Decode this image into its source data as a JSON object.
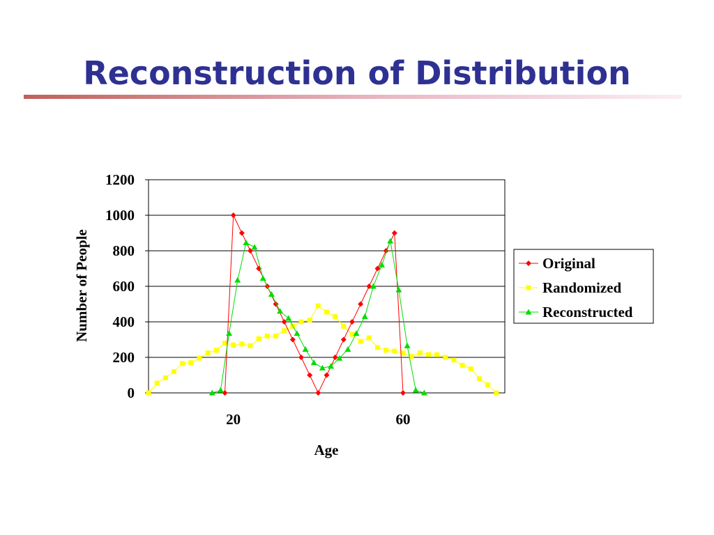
{
  "slide": {
    "title": "Reconstruction of Distribution"
  },
  "colors": {
    "title": "#2e3192",
    "rule": "#c0605a",
    "original": "#ff0000",
    "randomized": "#ffff00",
    "reconstructed": "#00dd00",
    "grid": "#000000"
  },
  "chart_data": {
    "type": "line",
    "xlabel": "Age",
    "ylabel": "Number of People",
    "xlim": [
      0,
      84
    ],
    "ylim": [
      0,
      1200
    ],
    "yticks": [
      0,
      200,
      400,
      600,
      800,
      1000,
      1200
    ],
    "xticks": [
      20,
      60
    ],
    "grid": true,
    "legend": "right",
    "series": [
      {
        "name": "Original",
        "marker": "diamond",
        "points": [
          [
            18,
            0
          ],
          [
            20,
            1000
          ],
          [
            22,
            900
          ],
          [
            24,
            800
          ],
          [
            26,
            700
          ],
          [
            28,
            600
          ],
          [
            30,
            500
          ],
          [
            32,
            400
          ],
          [
            34,
            300
          ],
          [
            36,
            200
          ],
          [
            38,
            100
          ],
          [
            40,
            0
          ],
          [
            42,
            100
          ],
          [
            44,
            200
          ],
          [
            46,
            300
          ],
          [
            48,
            400
          ],
          [
            50,
            500
          ],
          [
            52,
            600
          ],
          [
            54,
            700
          ],
          [
            56,
            800
          ],
          [
            58,
            900
          ],
          [
            60,
            0
          ]
        ]
      },
      {
        "name": "Randomized",
        "marker": "square",
        "points": [
          [
            0,
            0
          ],
          [
            2,
            55
          ],
          [
            4,
            85
          ],
          [
            6,
            120
          ],
          [
            8,
            165
          ],
          [
            10,
            170
          ],
          [
            12,
            195
          ],
          [
            14,
            225
          ],
          [
            16,
            240
          ],
          [
            18,
            280
          ],
          [
            20,
            270
          ],
          [
            22,
            275
          ],
          [
            24,
            265
          ],
          [
            26,
            305
          ],
          [
            28,
            320
          ],
          [
            30,
            320
          ],
          [
            32,
            350
          ],
          [
            34,
            375
          ],
          [
            36,
            400
          ],
          [
            38,
            410
          ],
          [
            40,
            490
          ],
          [
            42,
            455
          ],
          [
            44,
            430
          ],
          [
            46,
            375
          ],
          [
            48,
            330
          ],
          [
            50,
            290
          ],
          [
            52,
            310
          ],
          [
            54,
            255
          ],
          [
            56,
            240
          ],
          [
            58,
            235
          ],
          [
            60,
            225
          ],
          [
            62,
            205
          ],
          [
            64,
            225
          ],
          [
            66,
            215
          ],
          [
            68,
            215
          ],
          [
            70,
            200
          ],
          [
            72,
            185
          ],
          [
            74,
            155
          ],
          [
            76,
            135
          ],
          [
            78,
            80
          ],
          [
            80,
            45
          ],
          [
            82,
            0
          ]
        ]
      },
      {
        "name": "Reconstructed",
        "marker": "triangle",
        "points": [
          [
            15,
            0
          ],
          [
            17,
            15
          ],
          [
            19,
            335
          ],
          [
            21,
            635
          ],
          [
            23,
            845
          ],
          [
            25,
            820
          ],
          [
            27,
            645
          ],
          [
            29,
            555
          ],
          [
            31,
            460
          ],
          [
            33,
            420
          ],
          [
            35,
            335
          ],
          [
            37,
            245
          ],
          [
            39,
            170
          ],
          [
            41,
            140
          ],
          [
            43,
            150
          ],
          [
            45,
            195
          ],
          [
            47,
            245
          ],
          [
            49,
            335
          ],
          [
            51,
            430
          ],
          [
            53,
            600
          ],
          [
            55,
            720
          ],
          [
            57,
            855
          ],
          [
            59,
            580
          ],
          [
            61,
            265
          ],
          [
            63,
            15
          ],
          [
            65,
            0
          ]
        ]
      }
    ]
  }
}
